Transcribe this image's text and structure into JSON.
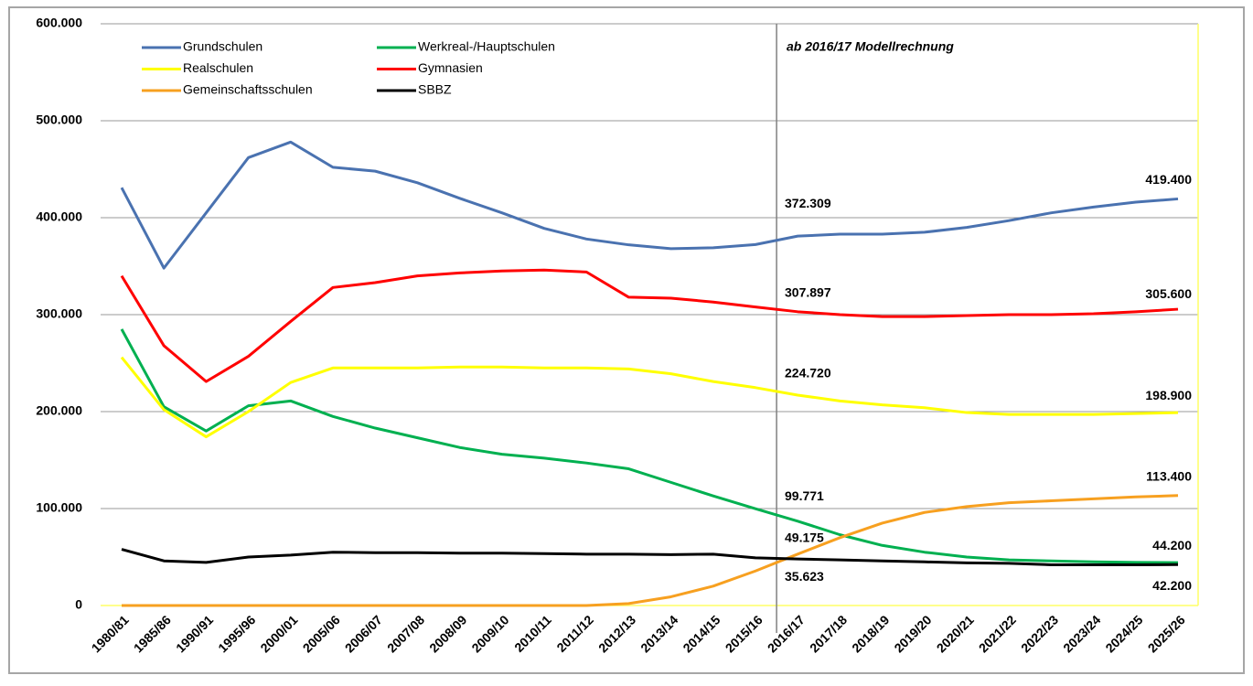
{
  "chart_data": {
    "type": "line",
    "annotation": "ab 2016/17 Modellrechnung",
    "categories": [
      "1980/81",
      "1985/86",
      "1990/91",
      "1995/96",
      "2000/01",
      "2005/06",
      "2006/07",
      "2007/08",
      "2008/09",
      "2009/10",
      "2010/11",
      "2011/12",
      "2012/13",
      "2013/14",
      "2014/15",
      "2015/16",
      "2016/17",
      "2017/18",
      "2018/19",
      "2019/20",
      "2020/21",
      "2021/22",
      "2022/23",
      "2023/24",
      "2024/25",
      "2025/26"
    ],
    "series": [
      {
        "name": "Grundschulen",
        "color": "#4a72b0",
        "values": [
          431000,
          348000,
          405000,
          462000,
          478000,
          452000,
          448000,
          436000,
          420000,
          405000,
          389000,
          378000,
          372000,
          368000,
          369000,
          372309,
          381000,
          383000,
          383000,
          385000,
          390000,
          397000,
          405000,
          411000,
          416000,
          419400
        ],
        "value_labels": [
          null,
          null,
          null,
          null,
          null,
          null,
          null,
          null,
          null,
          null,
          null,
          null,
          null,
          null,
          null,
          "372.309",
          null,
          null,
          null,
          null,
          null,
          null,
          null,
          null,
          null,
          "419.400"
        ]
      },
      {
        "name": "Werkreal-/Hauptschulen",
        "color": "#00b050",
        "values": [
          285000,
          205000,
          180000,
          206000,
          211000,
          195000,
          183000,
          173000,
          163000,
          156000,
          152000,
          147000,
          141000,
          127000,
          113000,
          99771,
          87000,
          73000,
          62000,
          55000,
          50000,
          47000,
          46000,
          45000,
          44500,
          44200
        ],
        "value_labels": [
          null,
          null,
          null,
          null,
          null,
          null,
          null,
          null,
          null,
          null,
          null,
          null,
          null,
          null,
          null,
          "99.771",
          null,
          null,
          null,
          null,
          null,
          null,
          null,
          null,
          null,
          "44.200"
        ]
      },
      {
        "name": "Realschulen",
        "color": "#ffff00",
        "values": [
          256000,
          202000,
          174000,
          200000,
          230000,
          245000,
          245000,
          245000,
          246000,
          246000,
          245000,
          245000,
          244000,
          239000,
          231000,
          224720,
          217000,
          211000,
          207000,
          204000,
          199000,
          197000,
          197000,
          197000,
          198000,
          198900
        ],
        "value_labels": [
          null,
          null,
          null,
          null,
          null,
          null,
          null,
          null,
          null,
          null,
          null,
          null,
          null,
          null,
          null,
          "224.720",
          null,
          null,
          null,
          null,
          null,
          null,
          null,
          null,
          null,
          "198.900"
        ]
      },
      {
        "name": "Gymnasien",
        "color": "#ff0000",
        "values": [
          340000,
          268000,
          231000,
          257000,
          293000,
          328000,
          333000,
          340000,
          343000,
          345000,
          346000,
          344000,
          318000,
          317000,
          313000,
          307897,
          303000,
          300000,
          298000,
          298000,
          299000,
          300000,
          300000,
          301000,
          303000,
          305600
        ],
        "value_labels": [
          null,
          null,
          null,
          null,
          null,
          null,
          null,
          null,
          null,
          null,
          null,
          null,
          null,
          null,
          null,
          "307.897",
          null,
          null,
          null,
          null,
          null,
          null,
          null,
          null,
          null,
          "305.600"
        ]
      },
      {
        "name": "Gemeinschaftsschulen",
        "color": "#f7a020",
        "values": [
          0,
          0,
          0,
          0,
          0,
          0,
          0,
          0,
          0,
          0,
          0,
          0,
          2000,
          9000,
          20000,
          35623,
          53000,
          70000,
          85000,
          96000,
          102000,
          106000,
          108000,
          110000,
          112000,
          113400
        ],
        "value_labels": [
          null,
          null,
          null,
          null,
          null,
          null,
          null,
          null,
          null,
          null,
          null,
          null,
          null,
          null,
          null,
          "35.623",
          null,
          null,
          null,
          null,
          null,
          null,
          null,
          null,
          null,
          "113.400"
        ]
      },
      {
        "name": "SBBZ",
        "color": "#000000",
        "values": [
          58000,
          46000,
          44500,
          50000,
          52000,
          55000,
          54500,
          54500,
          54000,
          54000,
          53500,
          53000,
          53000,
          52500,
          53000,
          49175,
          48000,
          47000,
          46000,
          45000,
          44000,
          43500,
          42000,
          42000,
          42000,
          42200
        ],
        "value_labels": [
          null,
          null,
          null,
          null,
          null,
          null,
          null,
          null,
          null,
          null,
          null,
          null,
          null,
          null,
          null,
          "49.175",
          null,
          null,
          null,
          null,
          null,
          null,
          null,
          null,
          null,
          "42.200"
        ]
      }
    ],
    "ylim": [
      0,
      600000
    ],
    "yticks": [
      {
        "value": 0,
        "label": "0"
      },
      {
        "value": 100000,
        "label": "100.000"
      },
      {
        "value": 200000,
        "label": "200.000"
      },
      {
        "value": 300000,
        "label": "300.000"
      },
      {
        "value": 400000,
        "label": "400.000"
      },
      {
        "value": 500000,
        "label": "500.000"
      },
      {
        "value": 600000,
        "label": "600.000"
      }
    ],
    "grid": true
  }
}
